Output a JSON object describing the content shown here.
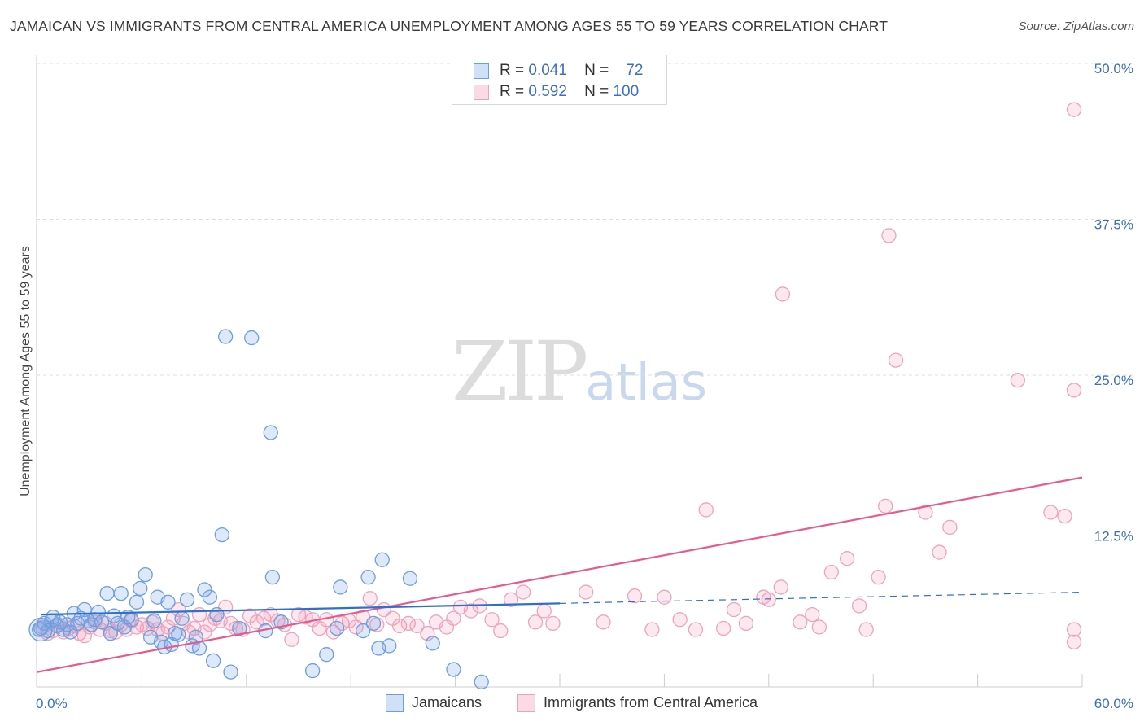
{
  "header": {
    "title": "JAMAICAN VS IMMIGRANTS FROM CENTRAL AMERICA UNEMPLOYMENT AMONG AGES 55 TO 59 YEARS CORRELATION CHART",
    "source": "Source: ZipAtlas.com"
  },
  "watermark": {
    "zip": "ZIP",
    "atlas": "atlas"
  },
  "legend_top": [
    {
      "r_label": "R =",
      "r_value": "0.041",
      "n_label": "N =",
      "n_value": "72",
      "color": "#6fa0e0"
    },
    {
      "r_label": "R =",
      "r_value": "0.592",
      "n_label": "N =",
      "n_value": "100",
      "color": "#f08fb0"
    }
  ],
  "legend_bottom": [
    {
      "label": "Jamaicans",
      "color": "#6fa0e0"
    },
    {
      "label": "Immigrants from Central America",
      "color": "#f08fb0"
    }
  ],
  "colors": {
    "blue_fill": "rgba(120,165,230,0.25)",
    "blue_stroke": "#6e9edd",
    "blue_line": "#2f6fd0",
    "pink_fill": "rgba(240,150,180,0.22)",
    "pink_stroke": "#eea3bd",
    "pink_line": "#e55b8c",
    "axis_label": "#3b6fc2"
  },
  "chart_data": {
    "type": "scatter",
    "title": "JAMAICAN VS IMMIGRANTS FROM CENTRAL AMERICA UNEMPLOYMENT AMONG AGES 55 TO 59 YEARS CORRELATION CHART",
    "xlabel": "",
    "ylabel": "Unemployment Among Ages 55 to 59 years",
    "xlim": [
      0,
      60
    ],
    "ylim": [
      0,
      50
    ],
    "x_tick_labels": [
      "0.0%",
      "60.0%"
    ],
    "y_ticks": [
      12.5,
      25.0,
      37.5,
      50.0
    ],
    "y_tick_labels": [
      "12.5%",
      "25.0%",
      "37.5%",
      "50.0%"
    ],
    "grid": "horizontal dashed",
    "legend": "top-center and bottom",
    "series": [
      {
        "name": "Jamaicans",
        "R": 0.041,
        "N": 72,
        "trend": {
          "x": [
            0.2,
            30
          ],
          "y": [
            5.8,
            6.7
          ],
          "dashed_to": [
            60,
            7.6
          ]
        },
        "points": [
          [
            0.2,
            4.7
          ],
          [
            0.4,
            5.1
          ],
          [
            0.6,
            4.5
          ],
          [
            0.8,
            5.3
          ],
          [
            0.9,
            5.6
          ],
          [
            1.1,
            4.9
          ],
          [
            1.3,
            5.2
          ],
          [
            1.5,
            4.6
          ],
          [
            1.7,
            5.0
          ],
          [
            1.9,
            4.4
          ],
          [
            2.1,
            5.9
          ],
          [
            2.3,
            5.1
          ],
          [
            2.5,
            5.5
          ],
          [
            2.7,
            6.2
          ],
          [
            2.9,
            5.3
          ],
          [
            3.1,
            5.0
          ],
          [
            3.3,
            5.4
          ],
          [
            3.5,
            6.0
          ],
          [
            3.7,
            5.2
          ],
          [
            4.0,
            7.5
          ],
          [
            4.2,
            4.3
          ],
          [
            4.4,
            5.7
          ],
          [
            4.6,
            5.1
          ],
          [
            4.8,
            7.5
          ],
          [
            5.0,
            4.8
          ],
          [
            5.2,
            5.6
          ],
          [
            5.4,
            5.4
          ],
          [
            5.7,
            6.8
          ],
          [
            5.9,
            7.9
          ],
          [
            6.2,
            9.0
          ],
          [
            6.5,
            4.0
          ],
          [
            6.7,
            5.3
          ],
          [
            6.9,
            7.2
          ],
          [
            7.1,
            3.6
          ],
          [
            7.3,
            3.2
          ],
          [
            7.5,
            6.8
          ],
          [
            7.7,
            3.4
          ],
          [
            7.9,
            4.3
          ],
          [
            8.1,
            4.2
          ],
          [
            8.3,
            5.5
          ],
          [
            8.6,
            7.0
          ],
          [
            8.9,
            3.3
          ],
          [
            9.1,
            4.0
          ],
          [
            9.3,
            3.1
          ],
          [
            9.6,
            7.8
          ],
          [
            9.9,
            7.2
          ],
          [
            10.1,
            2.1
          ],
          [
            10.3,
            5.8
          ],
          [
            10.6,
            12.2
          ],
          [
            10.8,
            28.1
          ],
          [
            11.1,
            1.2
          ],
          [
            11.6,
            4.7
          ],
          [
            12.3,
            28.0
          ],
          [
            13.1,
            4.5
          ],
          [
            13.4,
            20.4
          ],
          [
            13.5,
            8.8
          ],
          [
            14.0,
            5.2
          ],
          [
            15.8,
            1.3
          ],
          [
            16.6,
            2.6
          ],
          [
            17.2,
            4.7
          ],
          [
            17.4,
            8.0
          ],
          [
            18.7,
            4.5
          ],
          [
            19.0,
            8.8
          ],
          [
            19.3,
            5.1
          ],
          [
            19.6,
            3.1
          ],
          [
            19.8,
            10.2
          ],
          [
            20.2,
            3.3
          ],
          [
            21.4,
            8.7
          ],
          [
            22.7,
            3.5
          ],
          [
            23.9,
            1.4
          ],
          [
            25.5,
            0.4
          ],
          [
            0.1,
            4.6
          ]
        ]
      },
      {
        "name": "Immigrants from Central America",
        "R": 0.592,
        "N": 100,
        "trend": {
          "x": [
            0,
            60
          ],
          "y": [
            1.2,
            16.8
          ]
        },
        "points": [
          [
            0.3,
            4.8
          ],
          [
            0.6,
            4.3
          ],
          [
            0.9,
            4.5
          ],
          [
            1.2,
            5.0
          ],
          [
            1.5,
            4.4
          ],
          [
            1.8,
            4.7
          ],
          [
            2.1,
            4.9
          ],
          [
            2.4,
            4.3
          ],
          [
            2.7,
            4.1
          ],
          [
            3.0,
            4.8
          ],
          [
            3.3,
            5.2
          ],
          [
            3.6,
            4.6
          ],
          [
            3.9,
            5.1
          ],
          [
            4.2,
            4.5
          ],
          [
            4.5,
            4.4
          ],
          [
            4.8,
            5.0
          ],
          [
            5.1,
            4.6
          ],
          [
            5.4,
            5.3
          ],
          [
            5.7,
            4.8
          ],
          [
            6.0,
            5.0
          ],
          [
            6.3,
            4.7
          ],
          [
            6.6,
            5.2
          ],
          [
            6.9,
            4.6
          ],
          [
            7.2,
            4.3
          ],
          [
            7.5,
            4.8
          ],
          [
            7.8,
            5.5
          ],
          [
            8.1,
            6.2
          ],
          [
            8.4,
            5.1
          ],
          [
            8.7,
            4.4
          ],
          [
            9.0,
            4.7
          ],
          [
            9.3,
            5.8
          ],
          [
            9.6,
            4.4
          ],
          [
            9.9,
            5.0
          ],
          [
            10.2,
            5.5
          ],
          [
            10.5,
            5.3
          ],
          [
            10.8,
            6.4
          ],
          [
            11.1,
            5.1
          ],
          [
            11.4,
            4.7
          ],
          [
            11.8,
            4.6
          ],
          [
            12.2,
            5.7
          ],
          [
            12.6,
            5.2
          ],
          [
            13.0,
            5.5
          ],
          [
            13.4,
            5.8
          ],
          [
            13.8,
            5.3
          ],
          [
            14.2,
            5.0
          ],
          [
            14.6,
            3.8
          ],
          [
            15.0,
            5.8
          ],
          [
            15.4,
            5.6
          ],
          [
            15.8,
            5.4
          ],
          [
            16.2,
            4.7
          ],
          [
            16.6,
            5.4
          ],
          [
            17.0,
            4.4
          ],
          [
            17.5,
            5.1
          ],
          [
            17.9,
            5.3
          ],
          [
            18.3,
            4.8
          ],
          [
            18.7,
            5.6
          ],
          [
            19.1,
            7.1
          ],
          [
            19.5,
            5.0
          ],
          [
            19.9,
            6.2
          ],
          [
            20.4,
            5.5
          ],
          [
            20.8,
            4.9
          ],
          [
            21.3,
            5.1
          ],
          [
            21.8,
            4.9
          ],
          [
            22.4,
            4.3
          ],
          [
            22.9,
            5.2
          ],
          [
            23.5,
            4.8
          ],
          [
            23.9,
            5.5
          ],
          [
            24.3,
            6.4
          ],
          [
            24.9,
            6.1
          ],
          [
            25.4,
            6.5
          ],
          [
            26.1,
            5.4
          ],
          [
            26.6,
            4.5
          ],
          [
            27.2,
            7.0
          ],
          [
            27.9,
            7.6
          ],
          [
            28.6,
            5.2
          ],
          [
            29.1,
            6.1
          ],
          [
            29.6,
            5.1
          ],
          [
            31.5,
            7.6
          ],
          [
            32.5,
            5.2
          ],
          [
            34.3,
            7.3
          ],
          [
            35.3,
            4.6
          ],
          [
            36.0,
            7.2
          ],
          [
            36.9,
            5.4
          ],
          [
            37.8,
            4.6
          ],
          [
            38.4,
            14.2
          ],
          [
            39.4,
            4.7
          ],
          [
            40.0,
            6.2
          ],
          [
            40.7,
            5.1
          ],
          [
            41.7,
            7.2
          ],
          [
            42.0,
            7.0
          ],
          [
            42.7,
            8.0
          ],
          [
            43.8,
            5.2
          ],
          [
            44.5,
            5.8
          ],
          [
            44.9,
            4.8
          ],
          [
            45.6,
            9.2
          ],
          [
            46.5,
            10.3
          ],
          [
            47.2,
            6.5
          ],
          [
            47.6,
            4.6
          ],
          [
            48.3,
            8.8
          ],
          [
            48.7,
            14.5
          ]
        ],
        "extra_points": [
          [
            42.8,
            31.5
          ],
          [
            48.9,
            36.2
          ],
          [
            49.3,
            26.2
          ],
          [
            51.0,
            14.0
          ],
          [
            51.8,
            10.8
          ],
          [
            52.4,
            12.8
          ],
          [
            56.3,
            24.6
          ],
          [
            58.2,
            14.0
          ],
          [
            59.0,
            13.7
          ],
          [
            59.7,
            4.6
          ],
          [
            60.0,
            23.8
          ],
          [
            61.0,
            46.3
          ],
          [
            61.5,
            3.6
          ]
        ]
      }
    ]
  }
}
